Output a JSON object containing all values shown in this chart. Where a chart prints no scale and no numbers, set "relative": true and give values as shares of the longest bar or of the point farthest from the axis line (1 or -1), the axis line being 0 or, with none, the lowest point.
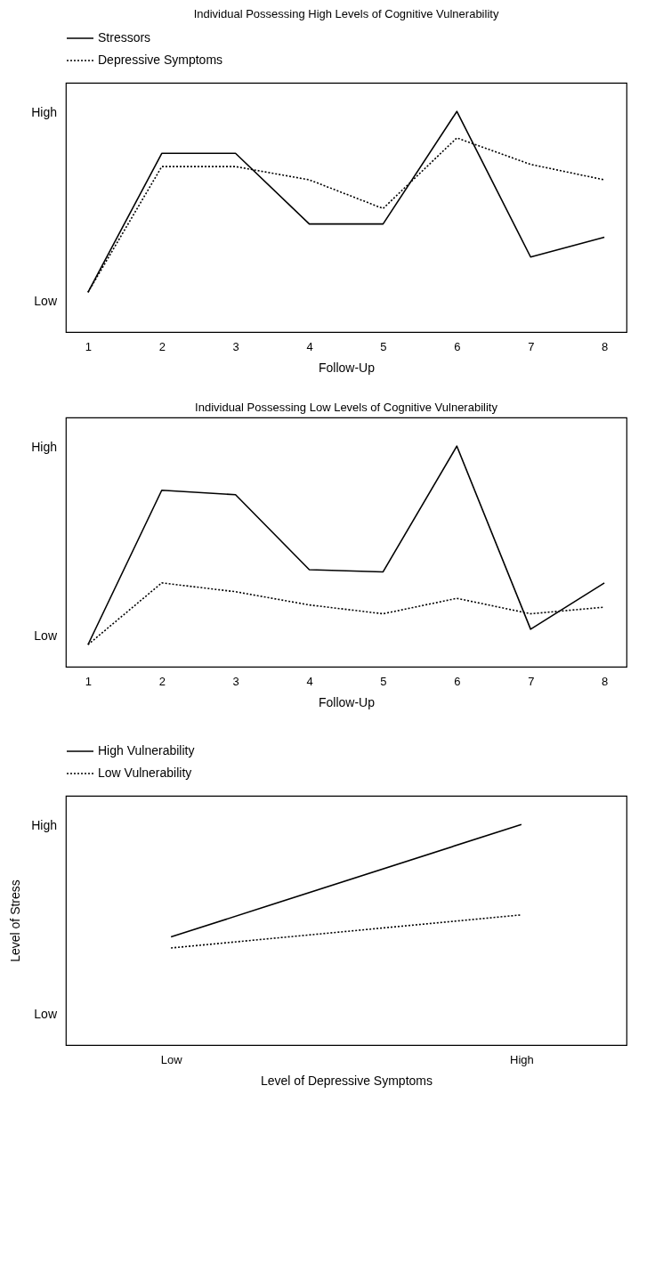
{
  "chart_data": [
    {
      "type": "line",
      "relative": true,
      "title": "Individual Possessing High Levels of Cognitive Vulnerability",
      "xlabel": "Follow-Up",
      "categories": [
        "1",
        "2",
        "3",
        "4",
        "5",
        "6",
        "7",
        "8"
      ],
      "annotations": [
        "High",
        "Low"
      ],
      "legend": "top",
      "series": [
        {
          "name": "Stressors",
          "color": "#000000",
          "line_style": "solid",
          "values": [
            0.18,
            0.81,
            0.81,
            0.49,
            0.49,
            1,
            0.34,
            0.43
          ]
        },
        {
          "name": "Depressive Symptoms",
          "color": "#000000",
          "line_style": "dotted",
          "values": [
            0.18,
            0.75,
            0.75,
            0.69,
            0.56,
            0.88,
            0.76,
            0.69
          ]
        }
      ]
    },
    {
      "type": "line",
      "relative": true,
      "title": "Individual Possessing Low Levels of Cognitive Vulnerability",
      "xlabel": "Follow-Up",
      "categories": [
        "1",
        "2",
        "3",
        "4",
        "5",
        "6",
        "7",
        "8"
      ],
      "annotations": [
        "High",
        "Low"
      ],
      "series": [
        {
          "color": "#000000",
          "line_style": "solid",
          "values": [
            0.1,
            0.8,
            0.78,
            0.44,
            0.43,
            1,
            0.17,
            0.38
          ]
        },
        {
          "color": "#000000",
          "line_style": "dotted",
          "values": [
            0.1,
            0.38,
            0.34,
            0.28,
            0.24,
            0.31,
            0.24,
            0.27
          ]
        }
      ]
    },
    {
      "type": "line",
      "relative": true,
      "xlabel": "Level of Depressive Symptoms",
      "ylabel": "Level of Stress",
      "categories": [
        "Low",
        "High"
      ],
      "annotations": [
        "High",
        "Low"
      ],
      "legend": "top",
      "series": [
        {
          "name": "High Vulnerability",
          "color": "#000000",
          "line_style": "solid",
          "values": [
            0.49,
            1
          ]
        },
        {
          "name": "Low Vulnerability",
          "color": "#000000",
          "line_style": "dotted",
          "values": [
            0.44,
            0.59
          ]
        }
      ]
    }
  ]
}
